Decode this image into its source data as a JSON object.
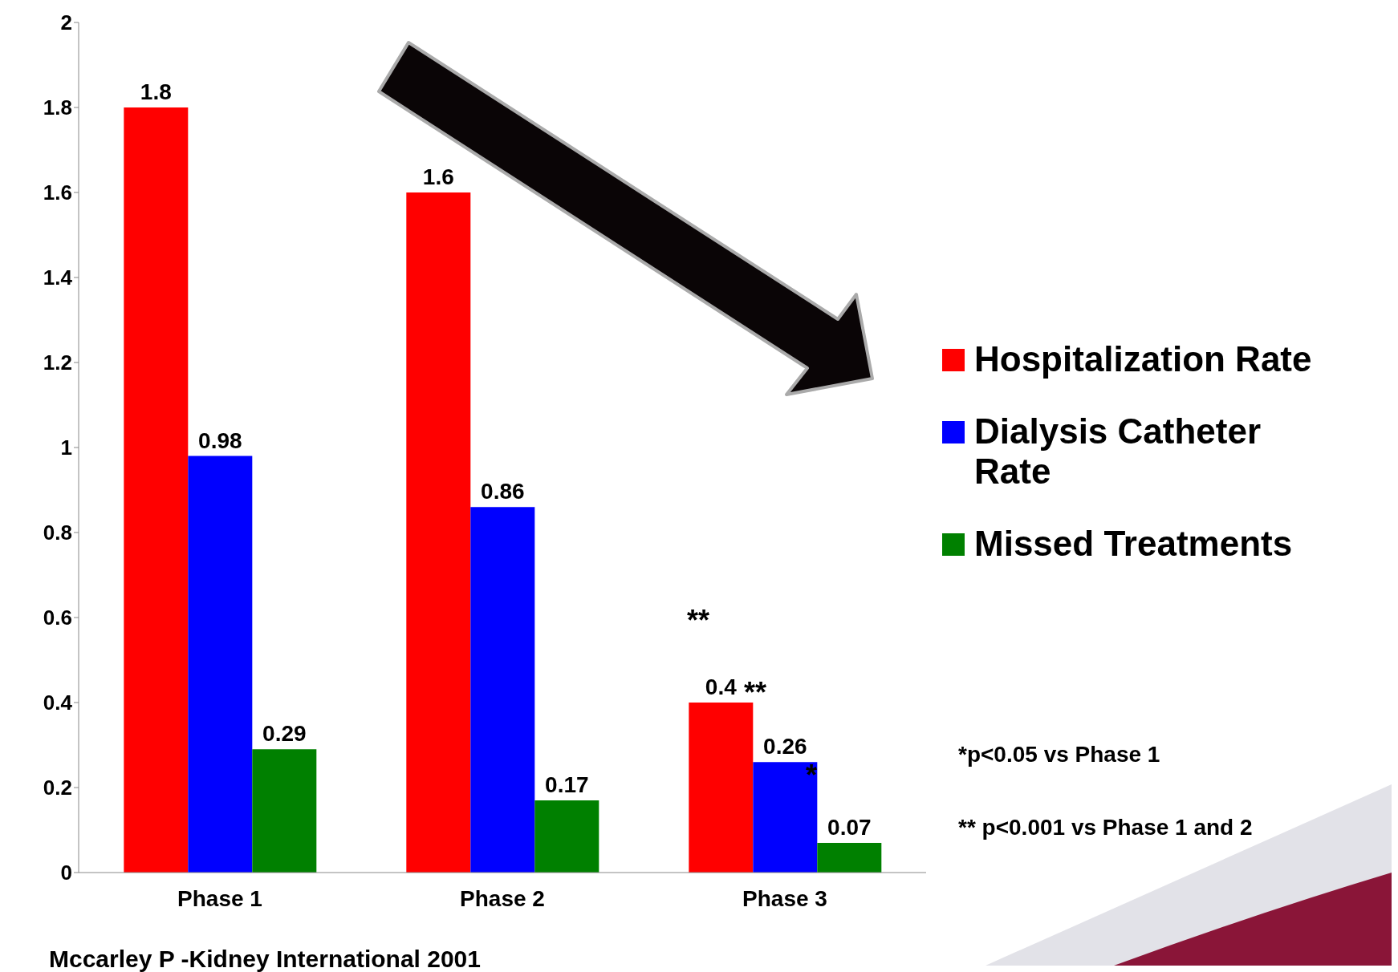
{
  "chart_data": {
    "type": "bar",
    "categories": [
      "Phase 1",
      "Phase 2",
      "Phase 3"
    ],
    "series": [
      {
        "name": "Hospitalization Rate",
        "color": "#ff0000",
        "values": [
          1.8,
          1.6,
          0.4
        ]
      },
      {
        "name": "Dialysis Catheter Rate",
        "color": "#0000ff",
        "values": [
          0.98,
          0.86,
          0.26
        ]
      },
      {
        "name": "Missed Treatments",
        "color": "#008000",
        "values": [
          0.29,
          0.17,
          0.07
        ]
      }
    ],
    "ylim": [
      0,
      2
    ],
    "yticks": [
      0,
      0.2,
      0.4,
      0.6,
      0.8,
      1,
      1.2,
      1.4,
      1.6,
      1.8,
      2
    ],
    "data_labels": true,
    "grid": false,
    "legend": "right",
    "annotations": [
      "**",
      "**",
      "*",
      "*p<0.05 vs Phase 1",
      "** p<0.001 vs Phase 1 and 2",
      "Mccarley P -Kidney International  2001"
    ]
  }
}
